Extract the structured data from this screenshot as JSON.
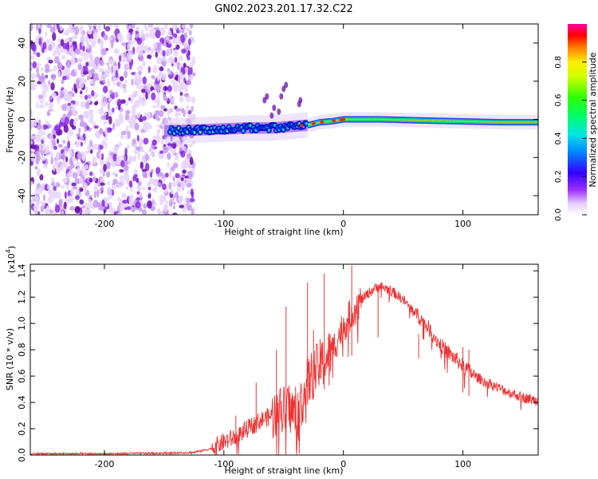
{
  "page": {
    "title": "GN02.2023.201.17.32.C22"
  },
  "chart_data": [
    {
      "type": "heatmap",
      "xlabel": "Height of straight line (km)",
      "ylabel": "Frequency (Hz)",
      "xlim": [
        -262,
        163
      ],
      "ylim": [
        -50,
        50
      ],
      "xticks": [
        -200,
        -100,
        0,
        100
      ],
      "yticks": [
        -40,
        -20,
        0,
        20,
        40
      ],
      "ridge_curve": {
        "x": [
          -140,
          -120,
          -100,
          -80,
          -60,
          -40,
          -30,
          -20,
          -10,
          0,
          30,
          60,
          95,
          130,
          163
        ],
        "y": [
          -6,
          -5.5,
          -5,
          -4.5,
          -4.5,
          -3.5,
          -3,
          -1.5,
          -1,
          0,
          0,
          -0.5,
          -1,
          -1.5,
          -1.5
        ]
      },
      "noise_region_x": [
        -262,
        -125
      ],
      "colorbar": {
        "label": "Normalized spectral amplitude",
        "range": [
          0,
          1
        ],
        "ticks": [
          0.0,
          0.2,
          0.4,
          0.6,
          0.8
        ]
      }
    },
    {
      "type": "line",
      "xlabel": "Height of straight line (km)",
      "ylabel": "SNR (10 * v/v)",
      "scale_label": "(x10",
      "scale_exp": "4",
      "scale_close": ")",
      "xlim": [
        -262,
        163
      ],
      "ylim": [
        0,
        1.45
      ],
      "xticks": [
        -200,
        -100,
        0,
        100
      ],
      "yticks": [
        0.0,
        0.2,
        0.4,
        0.6,
        0.8,
        1.0,
        1.2,
        1.4
      ],
      "series": [
        {
          "color": "#ee3333",
          "x": [
            -262,
            -200,
            -150,
            -125,
            -110,
            -100,
            -90,
            -80,
            -70,
            -60,
            -50,
            -45,
            -40,
            -35,
            -30,
            -25,
            -20,
            -15,
            -10,
            -5,
            0,
            5,
            10,
            15,
            20,
            25,
            30,
            35,
            40,
            50,
            60,
            70,
            80,
            90,
            100,
            110,
            120,
            130,
            140,
            150,
            163
          ],
          "y": [
            0.01,
            0.01,
            0.015,
            0.02,
            0.05,
            0.1,
            0.14,
            0.2,
            0.26,
            0.3,
            0.34,
            0.36,
            0.3,
            0.4,
            0.55,
            0.62,
            0.68,
            0.72,
            0.78,
            0.88,
            0.98,
            1.05,
            1.12,
            1.18,
            1.22,
            1.26,
            1.28,
            1.27,
            1.25,
            1.18,
            1.08,
            0.98,
            0.85,
            0.76,
            0.68,
            0.6,
            0.55,
            0.51,
            0.47,
            0.44,
            0.41
          ]
        }
      ],
      "spikes": {
        "x": [
          -107,
          -90,
          -73,
          -56,
          -48,
          -40,
          -30,
          -25,
          -16,
          -12,
          7,
          29,
          63,
          100,
          105
        ],
        "y": [
          0.1,
          0.3,
          0.55,
          0.8,
          1.13,
          0.52,
          1.31,
          0.95,
          1.38,
          0.85,
          1.44,
          1.3,
          0.92,
          0.82,
          0.8
        ]
      }
    }
  ]
}
